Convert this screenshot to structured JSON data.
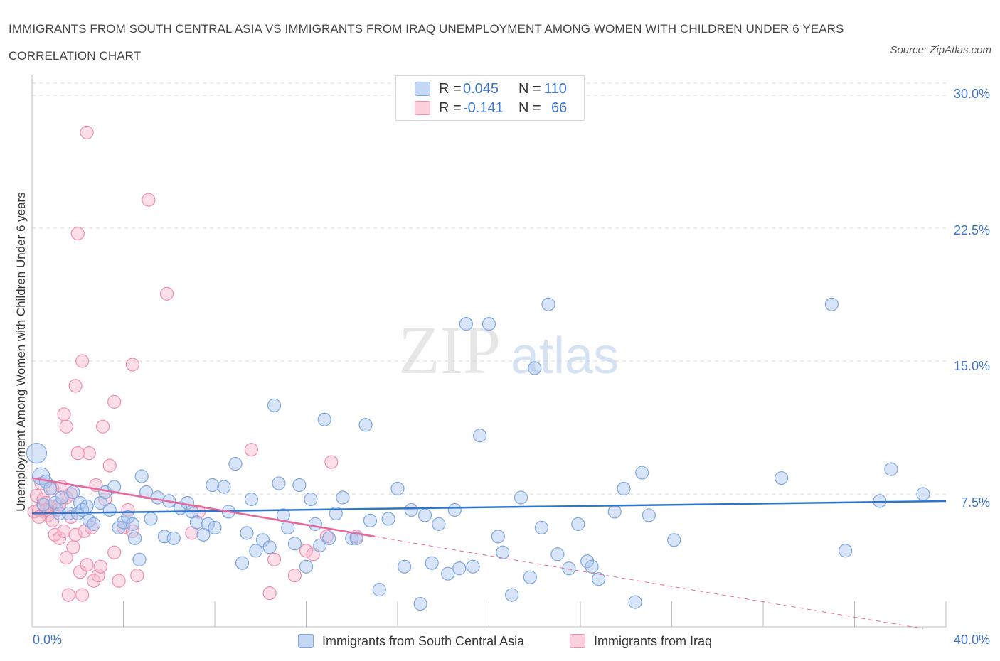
{
  "header": {
    "title": "IMMIGRANTS FROM SOUTH CENTRAL ASIA VS IMMIGRANTS FROM IRAQ UNEMPLOYMENT AMONG WOMEN WITH CHILDREN UNDER 6 YEARS CORRELATION CHART",
    "source": "Source: ZipAtlas.com"
  },
  "legend": {
    "series1": {
      "r_label": "R =",
      "r_value": "0.045",
      "n_label": "N =",
      "n_value": "110"
    },
    "series2": {
      "r_label": "R =",
      "r_value": "-0.141",
      "n_label": "N =",
      "n_value": "66"
    }
  },
  "bottom_legend": {
    "series1": "Immigrants from South Central Asia",
    "series2": "Immigrants from Iraq"
  },
  "axes": {
    "ylabel": "Unemployment Among Women with Children Under 6 years",
    "yticks": [
      "30.0%",
      "22.5%",
      "15.0%",
      "7.5%"
    ],
    "xtick_left": "0.0%",
    "xtick_right": "40.0%"
  },
  "colors": {
    "blue_fill": "#a9c6ef",
    "blue_stroke": "#7ea6e0",
    "blue_line": "#2f74cf",
    "pink_fill": "#f6b6ca",
    "pink_stroke": "#ef8fae",
    "pink_line": "#e8679a",
    "grid": "#d9d9d9"
  },
  "chart_data": {
    "type": "scatter",
    "xlim": [
      0,
      40
    ],
    "ylim": [
      0,
      30
    ],
    "x_unit": "%",
    "y_unit": "%",
    "grid": true,
    "watermark": "ZIPatlas",
    "series": [
      {
        "name": "Immigrants from South Central Asia",
        "color": "blue",
        "trend": {
          "x": [
            0,
            40
          ],
          "y": [
            6.4,
            7.1
          ]
        },
        "points": [
          [
            0.2,
            9.8
          ],
          [
            0.4,
            8.5
          ],
          [
            0.6,
            8.2
          ],
          [
            0.5,
            6.9
          ],
          [
            0.8,
            7.8
          ],
          [
            1.0,
            7.0
          ],
          [
            1.2,
            6.4
          ],
          [
            1.3,
            7.3
          ],
          [
            1.6,
            6.4
          ],
          [
            1.8,
            7.6
          ],
          [
            2.0,
            6.4
          ],
          [
            2.1,
            7.0
          ],
          [
            2.2,
            6.6
          ],
          [
            2.4,
            6.8
          ],
          [
            2.5,
            6.0
          ],
          [
            2.7,
            5.8
          ],
          [
            3.0,
            7.0
          ],
          [
            3.2,
            7.6
          ],
          [
            3.4,
            6.6
          ],
          [
            3.6,
            7.9
          ],
          [
            3.8,
            5.6
          ],
          [
            4.0,
            5.9
          ],
          [
            4.2,
            6.2
          ],
          [
            4.4,
            5.8
          ],
          [
            4.5,
            5.0
          ],
          [
            4.7,
            3.8
          ],
          [
            4.8,
            8.5
          ],
          [
            5.0,
            7.6
          ],
          [
            5.2,
            6.1
          ],
          [
            5.5,
            7.3
          ],
          [
            5.8,
            5.1
          ],
          [
            6.0,
            7.1
          ],
          [
            6.2,
            5.0
          ],
          [
            6.5,
            6.7
          ],
          [
            6.8,
            7.0
          ],
          [
            7.0,
            6.5
          ],
          [
            7.2,
            5.9
          ],
          [
            7.5,
            5.2
          ],
          [
            7.7,
            5.8
          ],
          [
            7.9,
            8.0
          ],
          [
            8.0,
            5.6
          ],
          [
            8.4,
            7.9
          ],
          [
            8.6,
            6.5
          ],
          [
            8.9,
            9.2
          ],
          [
            9.2,
            3.6
          ],
          [
            9.4,
            5.3
          ],
          [
            9.6,
            7.2
          ],
          [
            9.8,
            4.3
          ],
          [
            10.1,
            4.9
          ],
          [
            10.4,
            4.5
          ],
          [
            10.6,
            12.5
          ],
          [
            10.8,
            8.1
          ],
          [
            11.0,
            6.3
          ],
          [
            11.2,
            5.6
          ],
          [
            11.5,
            4.7
          ],
          [
            11.7,
            8.0
          ],
          [
            12.0,
            3.4
          ],
          [
            12.2,
            7.2
          ],
          [
            12.4,
            5.8
          ],
          [
            12.6,
            4.6
          ],
          [
            12.8,
            11.7
          ],
          [
            13.0,
            5.0
          ],
          [
            13.3,
            6.4
          ],
          [
            13.6,
            7.3
          ],
          [
            14.0,
            5.0
          ],
          [
            14.2,
            5.0
          ],
          [
            14.6,
            11.4
          ],
          [
            14.8,
            6.0
          ],
          [
            15.2,
            2.1
          ],
          [
            15.6,
            6.1
          ],
          [
            16.0,
            7.8
          ],
          [
            16.3,
            3.4
          ],
          [
            16.6,
            6.6
          ],
          [
            17.0,
            1.3
          ],
          [
            17.2,
            6.3
          ],
          [
            17.5,
            3.6
          ],
          [
            17.8,
            5.8
          ],
          [
            18.2,
            3.0
          ],
          [
            18.5,
            6.6
          ],
          [
            18.7,
            3.3
          ],
          [
            19.0,
            17.1
          ],
          [
            19.3,
            3.4
          ],
          [
            19.6,
            10.8
          ],
          [
            20.0,
            17.1
          ],
          [
            20.4,
            5.1
          ],
          [
            20.6,
            4.2
          ],
          [
            21.0,
            1.8
          ],
          [
            21.4,
            7.3
          ],
          [
            21.8,
            2.8
          ],
          [
            22.0,
            14.6
          ],
          [
            22.3,
            5.6
          ],
          [
            22.6,
            18.2
          ],
          [
            23.0,
            4.1
          ],
          [
            23.5,
            3.3
          ],
          [
            23.9,
            5.8
          ],
          [
            24.3,
            3.7
          ],
          [
            24.8,
            2.7
          ],
          [
            25.5,
            6.5
          ],
          [
            25.9,
            7.8
          ],
          [
            26.4,
            1.4
          ],
          [
            26.7,
            8.7
          ],
          [
            27.0,
            6.3
          ],
          [
            28.1,
            4.9
          ],
          [
            32.8,
            8.4
          ],
          [
            35.0,
            18.2
          ],
          [
            35.6,
            4.3
          ],
          [
            37.1,
            7.1
          ],
          [
            37.6,
            8.9
          ],
          [
            39.0,
            7.5
          ],
          [
            24.5,
            3.4
          ]
        ]
      },
      {
        "name": "Immigrants from Iraq",
        "color": "pink",
        "trend": {
          "x": [
            0,
            15
          ],
          "y": [
            8.4,
            5.1
          ]
        },
        "trend_extension": {
          "x": [
            15,
            39
          ],
          "y": [
            5.1,
            -0.1
          ]
        },
        "points": [
          [
            0.1,
            6.5
          ],
          [
            0.2,
            7.4
          ],
          [
            0.3,
            6.6
          ],
          [
            0.4,
            8.1
          ],
          [
            0.5,
            7.2
          ],
          [
            0.6,
            7.0
          ],
          [
            0.7,
            6.3
          ],
          [
            0.8,
            6.8
          ],
          [
            0.9,
            7.8
          ],
          [
            1.0,
            5.2
          ],
          [
            1.1,
            6.6
          ],
          [
            1.2,
            5.0
          ],
          [
            1.3,
            7.9
          ],
          [
            1.4,
            5.4
          ],
          [
            1.5,
            3.9
          ],
          [
            1.6,
            1.8
          ],
          [
            1.7,
            6.2
          ],
          [
            1.8,
            4.5
          ],
          [
            1.9,
            5.2
          ],
          [
            2.0,
            9.8
          ],
          [
            2.1,
            3.1
          ],
          [
            2.2,
            1.8
          ],
          [
            2.3,
            5.4
          ],
          [
            2.4,
            3.5
          ],
          [
            2.5,
            9.8
          ],
          [
            2.6,
            5.6
          ],
          [
            2.7,
            2.6
          ],
          [
            2.8,
            8.0
          ],
          [
            2.9,
            2.9
          ],
          [
            3.0,
            3.4
          ],
          [
            3.2,
            7.2
          ],
          [
            3.4,
            9.1
          ],
          [
            3.6,
            4.2
          ],
          [
            3.8,
            2.6
          ],
          [
            4.0,
            5.6
          ],
          [
            4.2,
            6.6
          ],
          [
            4.4,
            5.4
          ],
          [
            4.6,
            2.9
          ],
          [
            5.1,
            24.1
          ],
          [
            5.9,
            18.8
          ],
          [
            7.0,
            5.3
          ],
          [
            7.3,
            6.5
          ],
          [
            9.6,
            10.0
          ],
          [
            10.4,
            1.9
          ],
          [
            10.6,
            3.8
          ],
          [
            11.5,
            2.9
          ],
          [
            12.0,
            4.3
          ],
          [
            12.3,
            4.1
          ],
          [
            12.9,
            5.1
          ],
          [
            13.1,
            9.3
          ],
          [
            14.2,
            5.1
          ],
          [
            1.4,
            12.0
          ],
          [
            1.5,
            11.3
          ],
          [
            1.9,
            13.6
          ],
          [
            2.0,
            22.2
          ],
          [
            2.2,
            15.0
          ],
          [
            2.4,
            27.9
          ],
          [
            3.1,
            11.3
          ],
          [
            3.6,
            12.7
          ],
          [
            4.4,
            14.8
          ],
          [
            0.6,
            6.6
          ],
          [
            0.9,
            6.0
          ],
          [
            1.2,
            6.9
          ],
          [
            1.5,
            7.3
          ],
          [
            1.7,
            7.5
          ],
          [
            0.3,
            6.2
          ]
        ]
      }
    ]
  }
}
